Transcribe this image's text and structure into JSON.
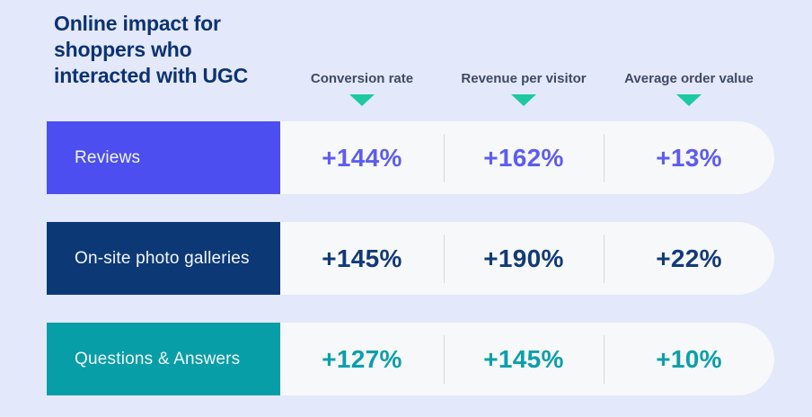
{
  "page": {
    "background_color": "#e3e8fb",
    "title_color": "#0c3272",
    "header_label_color": "#3f4b63",
    "triangle_color": "#1dc9a0",
    "row_background_color": "#f7f8f9",
    "divider_color": "#d8d9dd"
  },
  "header": {
    "title": "Online impact for shoppers who interacted with UGC",
    "title_lines": [
      "Online impact for",
      "shoppers who",
      "interacted with UGC"
    ]
  },
  "chart_data": {
    "type": "table",
    "title": "Online impact for shoppers who interacted with UGC",
    "columns": [
      "Conversion rate",
      "Revenue per visitor",
      "Average order value"
    ],
    "rows": [
      {
        "label": "Reviews",
        "values": [
          "+144%",
          "+162%",
          "+13%"
        ],
        "values_numeric_percent": [
          144,
          162,
          13
        ],
        "label_background": "#4c4ef0",
        "value_color": "#5d5cf2"
      },
      {
        "label": "On-site photo galleries",
        "values": [
          "+145%",
          "+190%",
          "+22%"
        ],
        "values_numeric_percent": [
          145,
          190,
          22
        ],
        "label_background": "#0d3876",
        "value_color": "#123a78"
      },
      {
        "label": "Questions & Answers",
        "values": [
          "+127%",
          "+145%",
          "+10%"
        ],
        "values_numeric_percent": [
          127,
          145,
          10
        ],
        "label_background": "#089ea7",
        "value_color": "#0b9faa"
      }
    ],
    "legend_position": "none",
    "grid": false
  }
}
